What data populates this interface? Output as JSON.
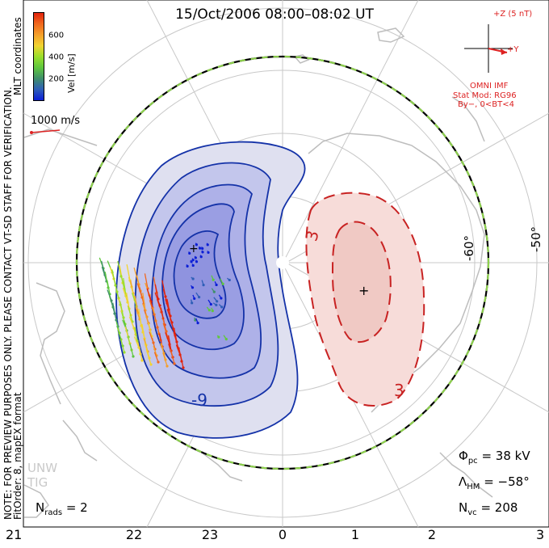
{
  "title": "15/Oct/2006 08:00–08:02 UT",
  "mlt_ticks": [
    "21",
    "22",
    "23",
    "0",
    "1",
    "2",
    "3"
  ],
  "lat_labels": [
    "-60°",
    "-50°"
  ],
  "contour_labels": {
    "negative": "-9",
    "positive": "3"
  },
  "colorbar": {
    "label": "Vel [m/s]",
    "ticks": [
      "600",
      "400",
      "200"
    ],
    "colors": [
      "#0c1fd6",
      "#2f5fb8",
      "#3f8f6a",
      "#5fc73e",
      "#9adf2c",
      "#f2d431",
      "#f59f2a",
      "#f0681e",
      "#e2230c"
    ]
  },
  "vector_scale": "1000 m/s",
  "imf": {
    "plus_z": "+Z (5 nT)",
    "plus_y": "+Y",
    "source": "OMNI IMF",
    "model": "Stat Mod: RG96",
    "condition": "By−, 0<BT<4"
  },
  "side_notes": {
    "note": "NOTE: FOR PREVIEW PURPOSES ONLY. PLEASE CONTACT VT-SD STAFF FOR VERIFICATION.",
    "fit": "FitOrder: 8, mapEX format",
    "coords": "MLT coordinates"
  },
  "stats": {
    "phi_pc_label": "Φ",
    "phi_pc_sub": "pc",
    "phi_pc_value": "= 38 kV",
    "lambda_hm_label": "Λ",
    "lambda_hm_sub": "HM",
    "lambda_hm_value": "= −58°",
    "n_vc_label": "N",
    "n_vc_sub": "vc",
    "n_vc_value": "= 208",
    "n_rads_label": "N",
    "n_rads_sub": "rads",
    "n_rads_value": "= 2"
  },
  "watermark": {
    "line1": "UNW",
    "line2": "TIG"
  }
}
